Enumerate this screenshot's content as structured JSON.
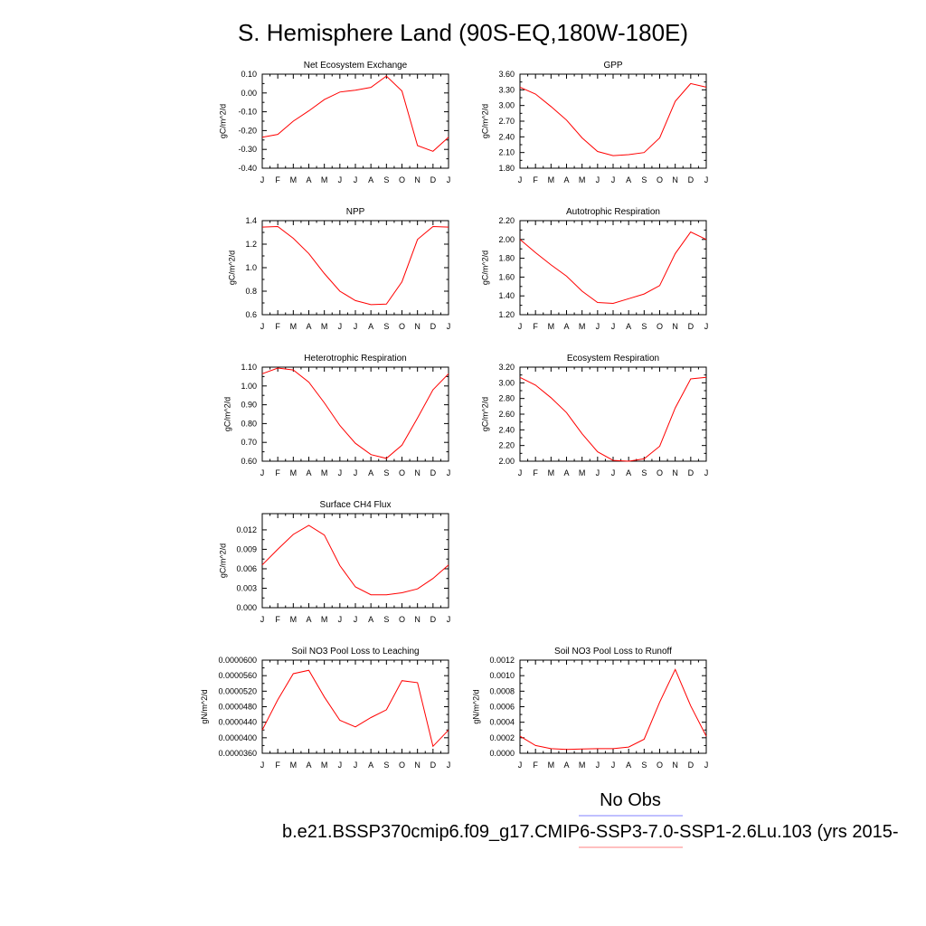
{
  "title": "S. Hemisphere Land (90S-EQ,180W-180E)",
  "legend": {
    "obs_label": "No Obs",
    "obs_color": "#8080ff",
    "model_label": "b.e21.BSSP370cmip6.f09_g17.CMIP6-SSP3-7.0-SSP1-2.6Lu.103 (yrs 2015-",
    "model_color": "#ff8080"
  },
  "line_color": "#ff0000",
  "chart_data": [
    {
      "type": "line",
      "title": "Net Ecosystem Exchange",
      "ylabel": "gC/m^2/d",
      "x": [
        "J",
        "F",
        "M",
        "A",
        "M",
        "J",
        "J",
        "A",
        "S",
        "O",
        "N",
        "D",
        "J"
      ],
      "y": [
        -0.235,
        -0.22,
        -0.15,
        -0.095,
        -0.035,
        0.005,
        0.015,
        0.03,
        0.09,
        0.01,
        -0.28,
        -0.31,
        -0.235
      ],
      "ylim": [
        -0.4,
        0.1
      ],
      "yticks": [
        -0.4,
        -0.3,
        -0.2,
        -0.1,
        0.0,
        0.1
      ],
      "ytick_labels": [
        "-0.40",
        "-0.30",
        "-0.20",
        "-0.10",
        "0.00",
        "0.10"
      ]
    },
    {
      "type": "line",
      "title": "GPP",
      "ylabel": "gC/m^2/d",
      "x": [
        "J",
        "F",
        "M",
        "A",
        "M",
        "J",
        "J",
        "A",
        "S",
        "O",
        "N",
        "D",
        "J"
      ],
      "y": [
        3.35,
        3.22,
        2.98,
        2.72,
        2.38,
        2.12,
        2.04,
        2.06,
        2.1,
        2.38,
        3.08,
        3.42,
        3.35
      ],
      "ylim": [
        1.8,
        3.6
      ],
      "yticks": [
        1.8,
        2.1,
        2.4,
        2.7,
        3.0,
        3.3,
        3.6
      ],
      "ytick_labels": [
        "1.80",
        "2.10",
        "2.40",
        "2.70",
        "3.00",
        "3.30",
        "3.60"
      ]
    },
    {
      "type": "line",
      "title": "NPP",
      "ylabel": "gC/m^2/d",
      "x": [
        "J",
        "F",
        "M",
        "A",
        "M",
        "J",
        "J",
        "A",
        "S",
        "O",
        "N",
        "D",
        "J"
      ],
      "y": [
        1.345,
        1.35,
        1.25,
        1.12,
        0.95,
        0.8,
        0.72,
        0.685,
        0.69,
        0.88,
        1.24,
        1.35,
        1.345
      ],
      "ylim": [
        0.6,
        1.4
      ],
      "yticks": [
        0.6,
        0.8,
        1.0,
        1.2,
        1.4
      ],
      "ytick_labels": [
        "0.6",
        "0.8",
        "1.0",
        "1.2",
        "1.4"
      ]
    },
    {
      "type": "line",
      "title": "Autotrophic Respiration",
      "ylabel": "gC/m^2/d",
      "x": [
        "J",
        "F",
        "M",
        "A",
        "M",
        "J",
        "J",
        "A",
        "S",
        "O",
        "N",
        "D",
        "J"
      ],
      "y": [
        2.0,
        1.86,
        1.73,
        1.61,
        1.45,
        1.33,
        1.32,
        1.37,
        1.42,
        1.51,
        1.85,
        2.08,
        2.0
      ],
      "ylim": [
        1.2,
        2.2
      ],
      "yticks": [
        1.2,
        1.4,
        1.6,
        1.8,
        2.0,
        2.2
      ],
      "ytick_labels": [
        "1.20",
        "1.40",
        "1.60",
        "1.80",
        "2.00",
        "2.20"
      ]
    },
    {
      "type": "line",
      "title": "Heterotrophic Respiration",
      "ylabel": "gC/m^2/d",
      "x": [
        "J",
        "F",
        "M",
        "A",
        "M",
        "J",
        "J",
        "A",
        "S",
        "O",
        "N",
        "D",
        "J"
      ],
      "y": [
        1.065,
        1.095,
        1.085,
        1.02,
        0.91,
        0.79,
        0.695,
        0.635,
        0.615,
        0.685,
        0.83,
        0.98,
        1.065
      ],
      "ylim": [
        0.6,
        1.1
      ],
      "yticks": [
        0.6,
        0.7,
        0.8,
        0.9,
        1.0,
        1.1
      ],
      "ytick_labels": [
        "0.60",
        "0.70",
        "0.80",
        "0.90",
        "1.00",
        "1.10"
      ]
    },
    {
      "type": "line",
      "title": "Ecosystem Respiration",
      "ylabel": "gC/m^2/d",
      "x": [
        "J",
        "F",
        "M",
        "A",
        "M",
        "J",
        "J",
        "A",
        "S",
        "O",
        "N",
        "D",
        "J"
      ],
      "y": [
        3.07,
        2.97,
        2.81,
        2.62,
        2.35,
        2.12,
        2.01,
        2.0,
        2.03,
        2.19,
        2.68,
        3.05,
        3.07
      ],
      "ylim": [
        2.0,
        3.2
      ],
      "yticks": [
        2.0,
        2.2,
        2.4,
        2.6,
        2.8,
        3.0,
        3.2
      ],
      "ytick_labels": [
        "2.00",
        "2.20",
        "2.40",
        "2.60",
        "2.80",
        "3.00",
        "3.20"
      ]
    },
    {
      "type": "line",
      "title": "Surface CH4 Flux",
      "ylabel": "gC/m^2/d",
      "x": [
        "J",
        "F",
        "M",
        "A",
        "M",
        "J",
        "J",
        "A",
        "S",
        "O",
        "N",
        "D",
        "J"
      ],
      "y": [
        0.0066,
        0.009,
        0.0113,
        0.0127,
        0.0112,
        0.0065,
        0.0032,
        0.002,
        0.002,
        0.0023,
        0.0029,
        0.0045,
        0.0066
      ],
      "ylim": [
        0.0,
        0.0145
      ],
      "yticks": [
        0.0,
        0.003,
        0.006,
        0.009,
        0.012
      ],
      "ytick_labels": [
        "0.000",
        "0.003",
        "0.006",
        "0.009",
        "0.012"
      ]
    },
    {
      "type": "line",
      "title": "Soil NO3 Pool Loss to Leaching",
      "ylabel": "gN/m^2/d",
      "x": [
        "J",
        "F",
        "M",
        "A",
        "M",
        "J",
        "J",
        "A",
        "S",
        "O",
        "N",
        "D",
        "J"
      ],
      "y": [
        4.2e-05,
        4.98e-05,
        5.65e-05,
        5.74e-05,
        5.05e-05,
        4.45e-05,
        4.28e-05,
        4.52e-05,
        4.72e-05,
        5.47e-05,
        5.42e-05,
        3.78e-05,
        4.2e-05
      ],
      "ylim": [
        3.6e-05,
        6e-05
      ],
      "yticks": [
        3.6e-05,
        4e-05,
        4.4e-05,
        4.8e-05,
        5.2e-05,
        5.6e-05,
        6e-05
      ],
      "ytick_labels": [
        "0.0000360",
        "0.0000400",
        "0.0000440",
        "0.0000480",
        "0.0000520",
        "0.0000560",
        "0.0000600"
      ]
    },
    {
      "type": "line",
      "title": "Soil NO3 Pool Loss to Runoff",
      "ylabel": "gN/m^2/d",
      "x": [
        "J",
        "F",
        "M",
        "A",
        "M",
        "J",
        "J",
        "A",
        "S",
        "O",
        "N",
        "D",
        "J"
      ],
      "y": [
        0.00022,
        0.0001,
        6e-05,
        5e-05,
        5.5e-05,
        6e-05,
        6e-05,
        8e-05,
        0.00018,
        0.00066,
        0.00108,
        0.00061,
        0.00022
      ],
      "ylim": [
        0.0,
        0.0012
      ],
      "yticks": [
        0.0,
        0.0002,
        0.0004,
        0.0006,
        0.0008,
        0.001,
        0.0012
      ],
      "ytick_labels": [
        "0.0000",
        "0.0002",
        "0.0004",
        "0.0006",
        "0.0008",
        "0.0010",
        "0.0012"
      ]
    }
  ]
}
